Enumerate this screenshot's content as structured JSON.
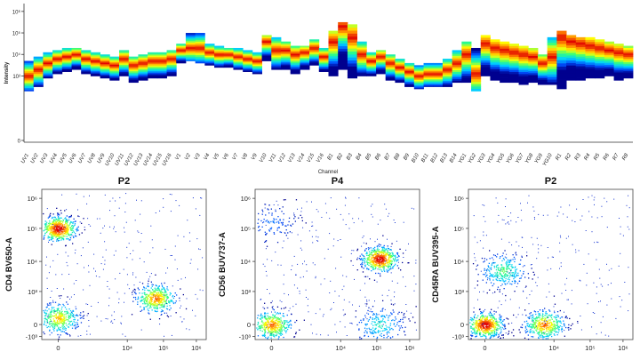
{
  "chart_data": [
    {
      "type": "heatmap",
      "title": "",
      "xlabel": "Channel",
      "ylabel": "Intensity",
      "y_ticks": [
        "10⁶",
        "10⁵",
        "10⁴",
        "10³",
        "0"
      ],
      "categories": [
        "UV1",
        "UV2",
        "UV3",
        "UV4",
        "UV5",
        "UV6",
        "UV7",
        "UV8",
        "UV9",
        "UV10",
        "UV11",
        "UV12",
        "UV13",
        "UV14",
        "UV15",
        "UV16",
        "V1",
        "V2",
        "V3",
        "V4",
        "V5",
        "V6",
        "V7",
        "V8",
        "V9",
        "V10",
        "V11",
        "V12",
        "V13",
        "V14",
        "V15",
        "V16",
        "B1",
        "B2",
        "B3",
        "B4",
        "B5",
        "B6",
        "B7",
        "B8",
        "B9",
        "B10",
        "B11",
        "B12",
        "B13",
        "B14",
        "YG1",
        "YG2",
        "YG3",
        "YG4",
        "YG5",
        "YG6",
        "YG7",
        "YG8",
        "YG9",
        "YG10",
        "R1",
        "R2",
        "R3",
        "R4",
        "R5",
        "R6",
        "R7",
        "R8"
      ],
      "peak_log10_intensity": [
        3.0,
        3.3,
        3.6,
        3.8,
        3.9,
        4.0,
        3.8,
        3.7,
        3.6,
        3.5,
        3.8,
        3.5,
        3.6,
        3.7,
        3.7,
        3.8,
        4.2,
        4.3,
        4.3,
        4.1,
        4.0,
        4.0,
        3.9,
        3.8,
        3.7,
        4.6,
        4.2,
        4.2,
        4.0,
        4.1,
        4.3,
        3.9,
        4.6,
        5.3,
        4.8,
        4.0,
        3.7,
        3.9,
        3.6,
        3.4,
        3.2,
        3.0,
        3.1,
        3.1,
        3.3,
        3.6,
        4.0,
        3.1,
        4.5,
        4.3,
        4.2,
        4.1,
        4.0,
        3.9,
        3.6,
        3.9,
        4.8,
        4.6,
        4.5,
        4.4,
        4.3,
        4.2,
        4.1,
        4.0
      ],
      "spread_low_log10": [
        2.3,
        2.5,
        2.9,
        3.1,
        3.2,
        3.3,
        3.1,
        3.0,
        2.9,
        2.8,
        3.0,
        2.7,
        2.8,
        2.9,
        2.9,
        3.0,
        3.6,
        3.7,
        3.6,
        3.5,
        3.4,
        3.4,
        3.3,
        3.2,
        3.1,
        3.7,
        3.3,
        3.3,
        3.1,
        3.3,
        3.5,
        3.2,
        3.0,
        3.3,
        2.9,
        3.0,
        3.0,
        3.1,
        2.8,
        2.7,
        2.5,
        2.4,
        2.5,
        2.5,
        2.5,
        2.7,
        2.7,
        2.3,
        3.0,
        2.8,
        2.7,
        2.7,
        2.6,
        2.7,
        2.6,
        2.6,
        2.4,
        2.8,
        2.8,
        2.9,
        2.9,
        3.0,
        2.8,
        2.9
      ],
      "spread_high_log10": [
        3.7,
        3.9,
        4.1,
        4.2,
        4.3,
        4.3,
        4.2,
        4.1,
        4.0,
        3.9,
        4.2,
        3.9,
        4.0,
        4.1,
        4.1,
        4.2,
        4.5,
        5.0,
        5.0,
        4.5,
        4.4,
        4.3,
        4.3,
        4.2,
        4.1,
        4.9,
        4.8,
        4.6,
        4.4,
        4.4,
        4.7,
        4.3,
        5.1,
        5.5,
        5.4,
        4.6,
        4.1,
        4.2,
        4.0,
        3.8,
        3.6,
        3.5,
        3.6,
        3.6,
        3.8,
        4.2,
        4.6,
        4.3,
        4.9,
        4.7,
        4.6,
        4.5,
        4.4,
        4.3,
        4.0,
        4.8,
        5.1,
        4.9,
        4.8,
        4.8,
        4.7,
        4.6,
        4.5,
        4.4
      ],
      "colorscale": [
        "#00008f",
        "#0050ff",
        "#00d0ff",
        "#30ff80",
        "#ffff00",
        "#ff8000",
        "#e00000"
      ]
    },
    {
      "type": "scatter",
      "title": "P2",
      "xlabel": "",
      "ylabel": "CD4 BV650-A",
      "x_ticks": [
        "0",
        "10⁴",
        "10⁵",
        "10⁶"
      ],
      "y_ticks": [
        "10⁶",
        "10⁵",
        "10⁴",
        "10³",
        "0",
        "-10³"
      ],
      "populations": [
        {
          "x": 0,
          "y": 100000,
          "relative_density": 1.0
        },
        {
          "x": 0,
          "y": 200,
          "relative_density": 0.7
        },
        {
          "x": 60000,
          "y": 800,
          "relative_density": 0.8
        }
      ]
    },
    {
      "type": "scatter",
      "title": "P4",
      "xlabel": "",
      "ylabel": "CD56 BUV737-A",
      "x_ticks": [
        "0",
        "10⁴",
        "10⁵",
        "10⁶"
      ],
      "y_ticks": [
        "10⁶",
        "10⁵",
        "10⁴",
        "10³",
        "0",
        "-10³"
      ],
      "populations": [
        {
          "x": 120000,
          "y": 12000,
          "relative_density": 1.0
        },
        {
          "x": 0,
          "y": 0,
          "relative_density": 0.8
        },
        {
          "x": 120000,
          "y": 0,
          "relative_density": 0.4
        },
        {
          "x": 0,
          "y": 150000,
          "relative_density": 0.2
        }
      ]
    },
    {
      "type": "scatter",
      "title": "P2",
      "xlabel": "",
      "ylabel": "CD45RA BUV395-A",
      "x_ticks": [
        "0",
        "10⁴",
        "10⁵",
        "10⁶"
      ],
      "y_ticks": [
        "10⁶",
        "10⁵",
        "10⁴",
        "10³",
        "0",
        "-10³"
      ],
      "populations": [
        {
          "x": 0,
          "y": 0,
          "relative_density": 1.0
        },
        {
          "x": 5000,
          "y": 0,
          "relative_density": 0.8
        },
        {
          "x": 500,
          "y": 5000,
          "relative_density": 0.5
        }
      ]
    }
  ]
}
